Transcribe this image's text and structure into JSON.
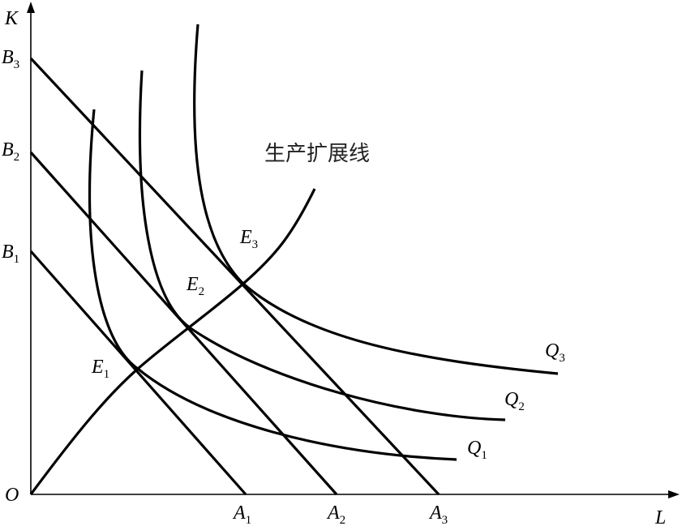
{
  "axes": {
    "y_label": "K",
    "x_label": "L",
    "origin": "O"
  },
  "isocost_lines": [
    {
      "b": {
        "letter": "B",
        "sub": "1"
      },
      "a": {
        "letter": "A",
        "sub": "1"
      }
    },
    {
      "b": {
        "letter": "B",
        "sub": "2"
      },
      "a": {
        "letter": "A",
        "sub": "2"
      }
    },
    {
      "b": {
        "letter": "B",
        "sub": "3"
      },
      "a": {
        "letter": "A",
        "sub": "3"
      }
    }
  ],
  "equilibria": [
    {
      "letter": "E",
      "sub": "1"
    },
    {
      "letter": "E",
      "sub": "2"
    },
    {
      "letter": "E",
      "sub": "3"
    }
  ],
  "isoquants": [
    {
      "letter": "Q",
      "sub": "1"
    },
    {
      "letter": "Q",
      "sub": "2"
    },
    {
      "letter": "Q",
      "sub": "3"
    }
  ],
  "expansion_path": {
    "label": "生产扩展线"
  }
}
